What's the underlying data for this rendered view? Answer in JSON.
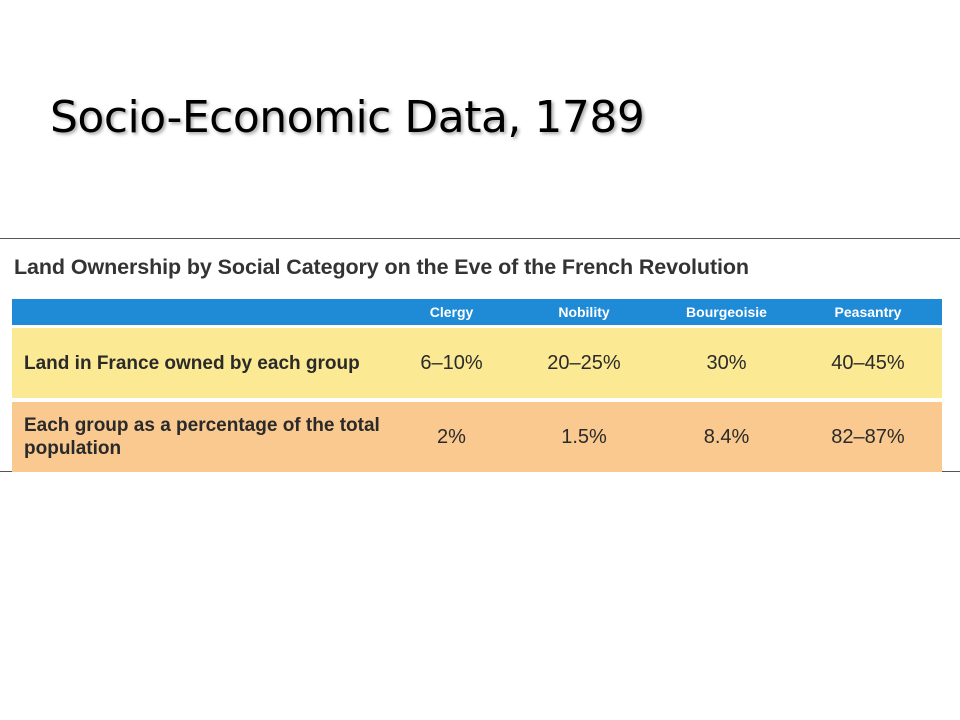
{
  "slide": {
    "title": "Socio-Economic Data, 1789"
  },
  "table": {
    "caption": "Land Ownership by Social Category on the Eve of the French Revolution",
    "header_bg": "#1f8ad6",
    "columns": [
      "",
      "Clergy",
      "Nobility",
      "Bourgeoisie",
      "Peasantry"
    ],
    "rows": [
      {
        "label": "Land in France owned by each group",
        "color": "#fbe993",
        "values": [
          "6–10%",
          "20–25%",
          "30%",
          "40–45%"
        ]
      },
      {
        "label": "Each group as a percentage of the total population",
        "color": "#f9c98f",
        "values": [
          "2%",
          "1.5%",
          "8.4%",
          "82–87%"
        ]
      }
    ]
  }
}
